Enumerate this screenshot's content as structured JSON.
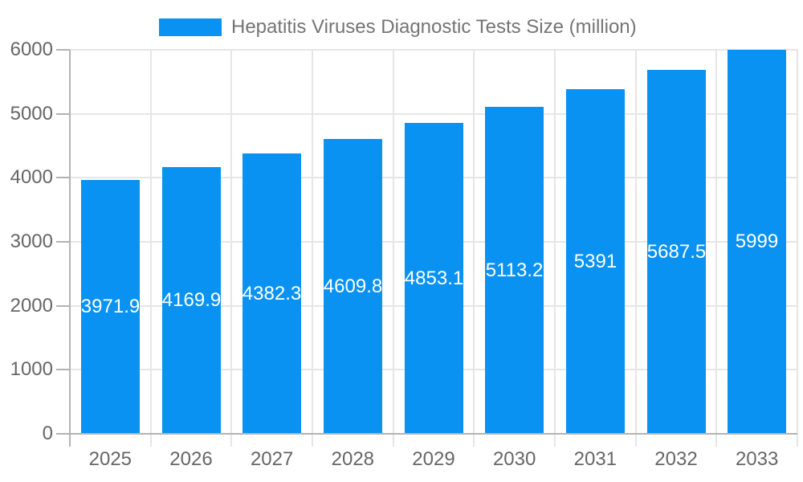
{
  "chart_data": {
    "type": "bar",
    "title": "",
    "legend": "Hepatitis Viruses Diagnostic Tests Size (million)",
    "legend_position": "top",
    "categories": [
      "2025",
      "2026",
      "2027",
      "2028",
      "2029",
      "2030",
      "2031",
      "2032",
      "2033"
    ],
    "values": [
      3971.9,
      4169.9,
      4382.3,
      4609.8,
      4853.1,
      5113.2,
      5391,
      5687.5,
      5999
    ],
    "xlabel": "",
    "ylabel": "",
    "ylim": [
      0,
      6000
    ],
    "ytick_step": 1000,
    "yticks": [
      "0",
      "1000",
      "2000",
      "3000",
      "4000",
      "5000",
      "6000"
    ],
    "grid": true,
    "colors": {
      "bar": "#0992f2",
      "bar_label": "#ffffff",
      "axis_label": "#666666",
      "legend_label": "#757575",
      "gridline": "#e6e6e6",
      "axis_line": "#b3b3b3",
      "background": "#ffffff"
    }
  }
}
